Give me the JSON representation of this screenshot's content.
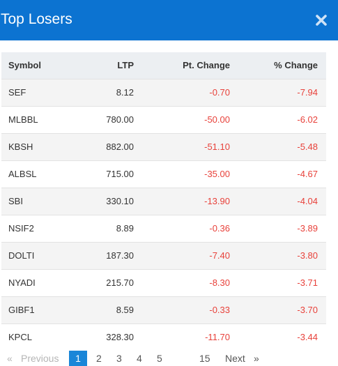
{
  "header": {
    "title": "Top Losers",
    "close_icon": "close-icon",
    "background": "#0c73d1"
  },
  "table": {
    "columns": [
      "Symbol",
      "LTP",
      "Pt. Change",
      "% Change"
    ],
    "rows": [
      {
        "symbol": "SEF",
        "ltp": "8.12",
        "pt_change": "-0.70",
        "pct_change": "-7.94"
      },
      {
        "symbol": "MLBBL",
        "ltp": "780.00",
        "pt_change": "-50.00",
        "pct_change": "-6.02"
      },
      {
        "symbol": "KBSH",
        "ltp": "882.00",
        "pt_change": "-51.10",
        "pct_change": "-5.48"
      },
      {
        "symbol": "ALBSL",
        "ltp": "715.00",
        "pt_change": "-35.00",
        "pct_change": "-4.67"
      },
      {
        "symbol": "SBI",
        "ltp": "330.10",
        "pt_change": "-13.90",
        "pct_change": "-4.04"
      },
      {
        "symbol": "NSIF2",
        "ltp": "8.89",
        "pt_change": "-0.36",
        "pct_change": "-3.89"
      },
      {
        "symbol": "DOLTI",
        "ltp": "187.30",
        "pt_change": "-7.40",
        "pct_change": "-3.80"
      },
      {
        "symbol": "NYADI",
        "ltp": "215.70",
        "pt_change": "-8.30",
        "pct_change": "-3.71"
      },
      {
        "symbol": "GIBF1",
        "ltp": "8.59",
        "pt_change": "-0.33",
        "pct_change": "-3.70"
      },
      {
        "symbol": "KPCL",
        "ltp": "328.30",
        "pt_change": "-11.70",
        "pct_change": "-3.44"
      }
    ],
    "negative_color": "#e8413a"
  },
  "pagination": {
    "first": "«",
    "previous": "Previous",
    "pages": [
      "1",
      "2",
      "3",
      "4",
      "5"
    ],
    "last_page": "15",
    "next": "Next",
    "last": "»",
    "active": "1"
  }
}
